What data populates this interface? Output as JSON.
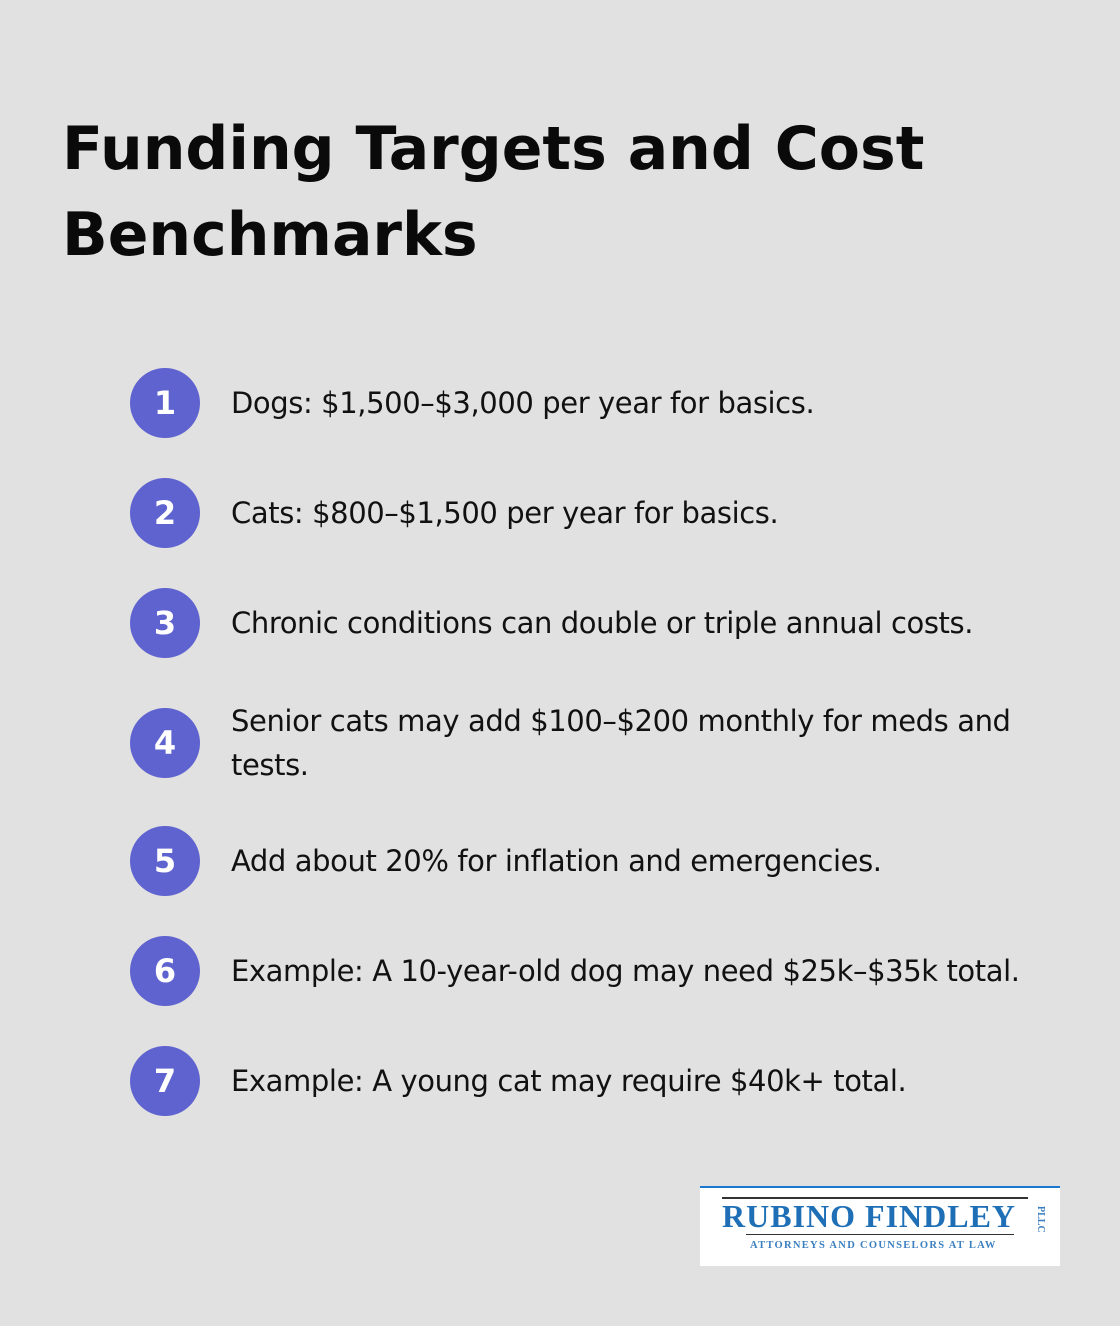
{
  "title": "Funding Targets and Cost Benchmarks",
  "items": [
    {
      "number": "1",
      "text": "Dogs: $1,500–$3,000 per year for basics."
    },
    {
      "number": "2",
      "text": "Cats: $800–$1,500 per year for basics."
    },
    {
      "number": "3",
      "text": "Chronic conditions can double or triple annual costs."
    },
    {
      "number": "4",
      "text": "Senior cats may add $100–$200 monthly for meds and tests."
    },
    {
      "number": "5",
      "text": "Add about 20% for inflation and emergencies."
    },
    {
      "number": "6",
      "text": "Example: A 10-year-old dog may need $25k–$35k total."
    },
    {
      "number": "7",
      "text": "Example: A young cat may require $40k+ total."
    }
  ],
  "logo": {
    "name": "RUBINO FINDLEY",
    "suffix": "PLLC",
    "tagline": "ATTORNEYS AND COUNSELORS AT LAW"
  },
  "colors": {
    "accent": "#5f63cf",
    "background": "#e0e1e0",
    "logo_blue": "#1e6fb6"
  }
}
